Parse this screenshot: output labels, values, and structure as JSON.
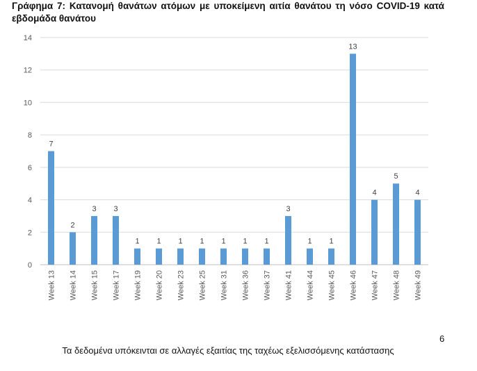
{
  "document": {
    "title": "Γράφημα 7: Κατανομή θανάτων ατόμων με υποκείμενη αιτία θανάτου τη νόσο COVID-19 κατά εβδομάδα θανάτου",
    "footnote": "Τα δεδομένα υπόκεινται σε αλλαγές εξαιτίας της ταχέως εξελισσόμενης κατάστασης",
    "page_number": "6"
  },
  "chart_data": {
    "type": "bar",
    "title": "",
    "xlabel": "",
    "ylabel": "",
    "categories": [
      "Week 13",
      "Week 14",
      "Week 15",
      "Week 17",
      "Week 19",
      "Week 20",
      "Week 23",
      "Week 25",
      "Week 31",
      "Week 36",
      "Week 37",
      "Week 41",
      "Week 44",
      "Week 45",
      "Week 46",
      "Week 47",
      "Week 48",
      "Week 49"
    ],
    "values": [
      7,
      2,
      3,
      3,
      1,
      1,
      1,
      1,
      1,
      1,
      1,
      3,
      1,
      1,
      13,
      4,
      5,
      4
    ],
    "ylim": [
      0,
      14
    ],
    "yticks": [
      0,
      2,
      4,
      6,
      8,
      10,
      12,
      14
    ],
    "grid": true,
    "data_labels": true,
    "legend": "none",
    "bar_color": "#5b9bd5",
    "grid_color": "#d9d9d9"
  }
}
